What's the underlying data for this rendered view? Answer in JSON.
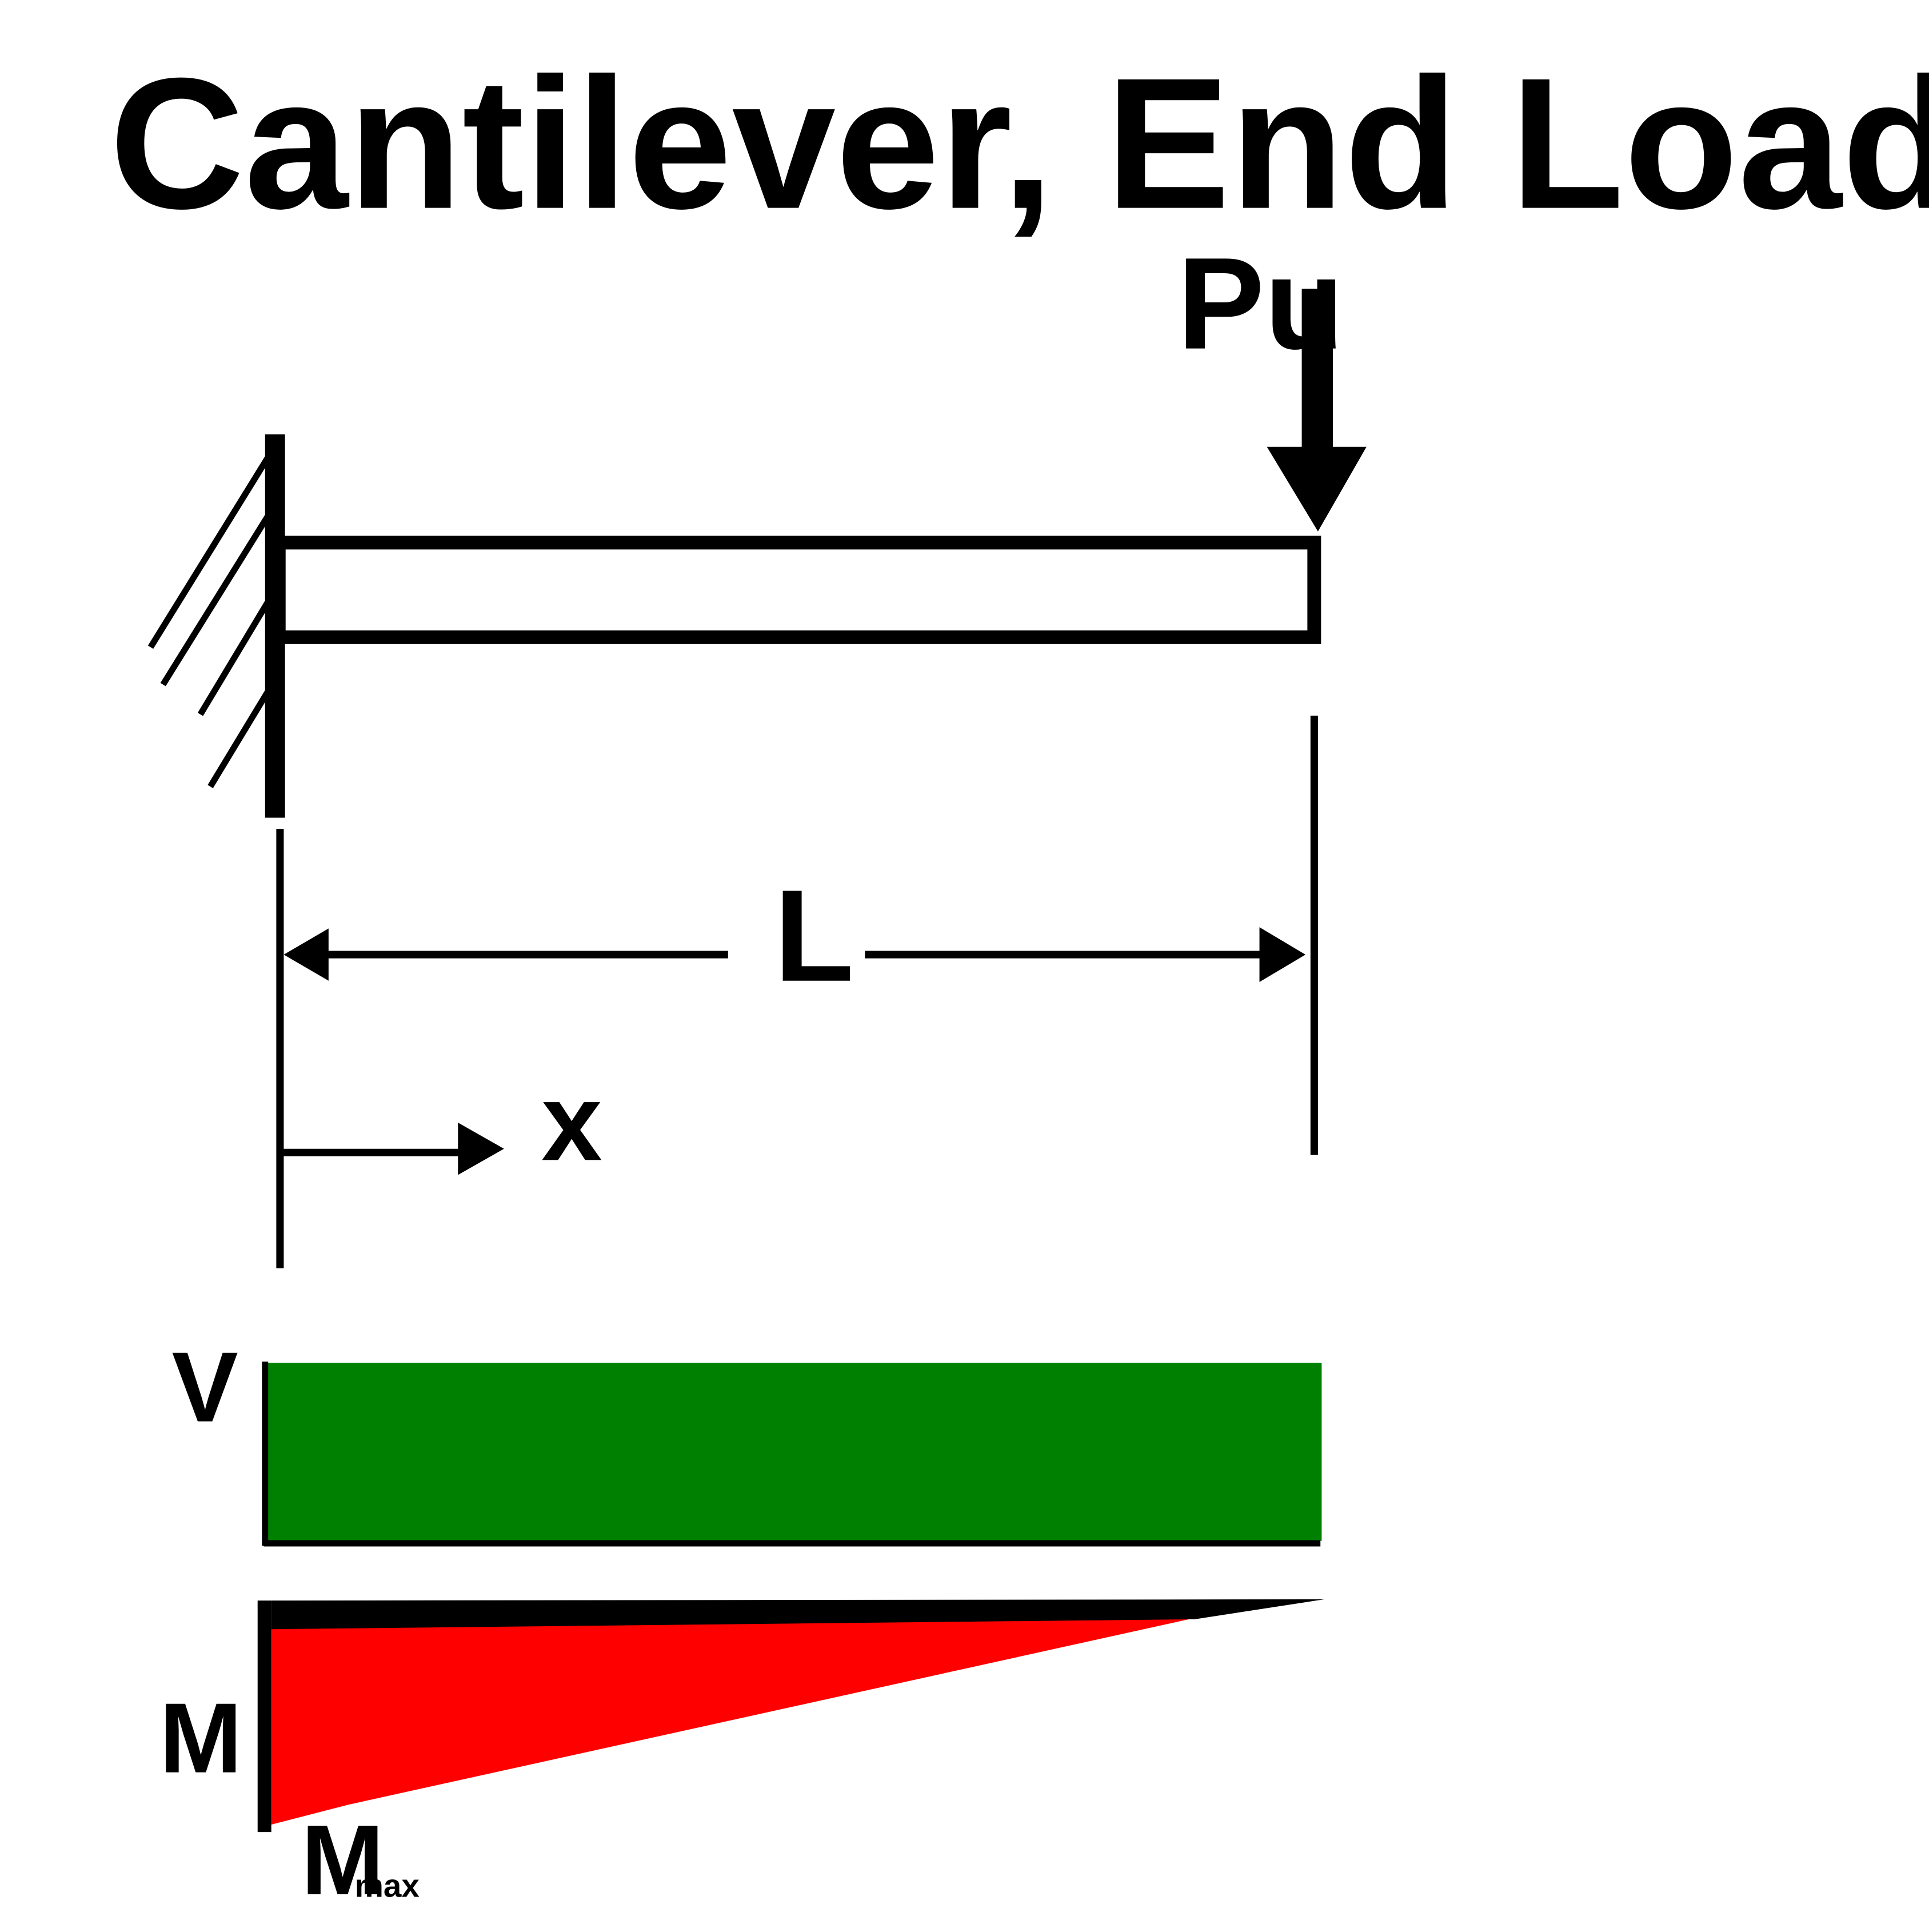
{
  "title": "Cantilever, End Load",
  "labels": {
    "load": "Pu",
    "length": "L",
    "position": "x",
    "shear": "V",
    "moment": "M",
    "max_moment_main": "M",
    "max_moment_sub": "max"
  },
  "colors": {
    "shear_fill": "#008000",
    "moment_fill": "#ff0000",
    "lines": "#000000",
    "background": "#ffffff"
  }
}
